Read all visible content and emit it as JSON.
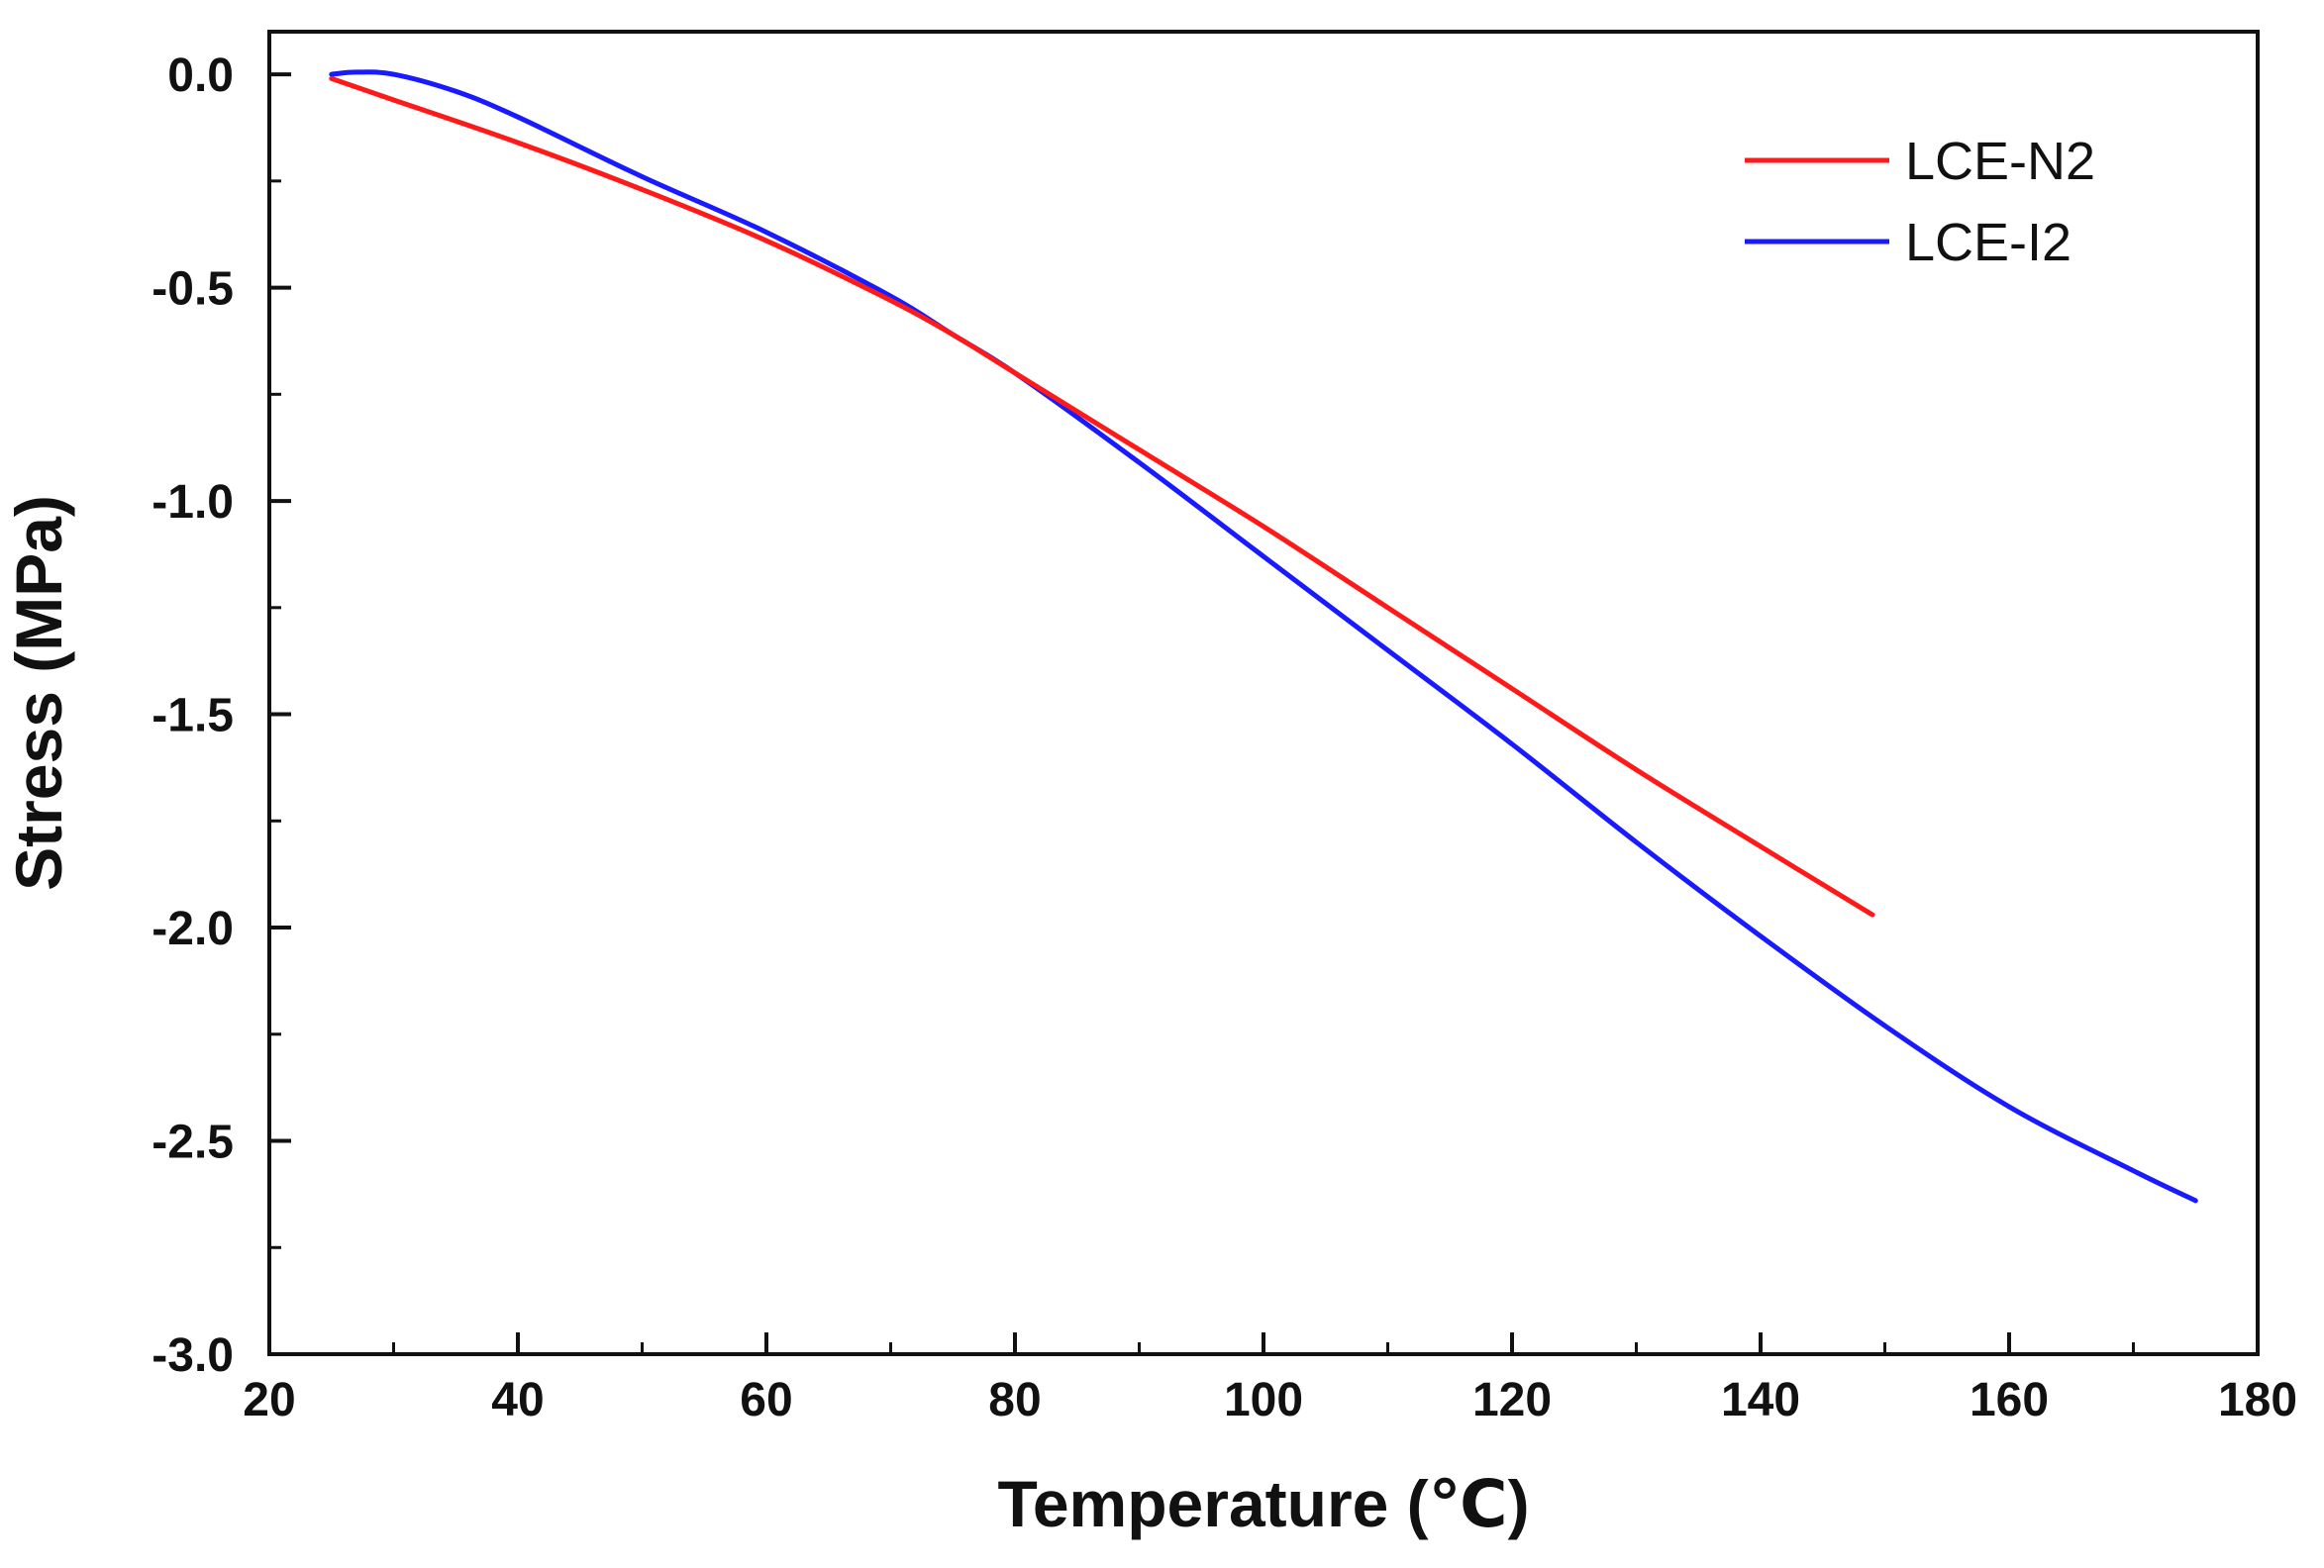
{
  "chart_data": {
    "type": "line",
    "title": "",
    "xlabel": "Temperature (℃)",
    "ylabel": "Stress (MPa)",
    "xlim": [
      20,
      180
    ],
    "ylim": [
      -3.0,
      0.1
    ],
    "xticks": [
      20,
      40,
      60,
      80,
      100,
      120,
      140,
      160,
      180
    ],
    "xtick_labels": [
      "20",
      "40",
      "60",
      "80",
      "100",
      "120",
      "140",
      "160",
      "180"
    ],
    "yticks": [
      0.0,
      -0.5,
      -1.0,
      -1.5,
      -2.0,
      -2.5,
      -3.0
    ],
    "ytick_labels": [
      "0.0",
      "-0.5",
      "-1.0",
      "-1.5",
      "-2.0",
      "-2.5",
      "-3.0"
    ],
    "grid": false,
    "legend_position": "top-right",
    "series": [
      {
        "name": "LCE-N2",
        "color": "#ff1a1a",
        "x": [
          25,
          30,
          40,
          50,
          60,
          70,
          75,
          80,
          90,
          100,
          110,
          120,
          130,
          140,
          149
        ],
        "y": [
          -0.01,
          -0.06,
          -0.16,
          -0.27,
          -0.39,
          -0.53,
          -0.61,
          -0.7,
          -0.88,
          -1.06,
          -1.25,
          -1.44,
          -1.63,
          -1.81,
          -1.97
        ]
      },
      {
        "name": "LCE-I2",
        "color": "#1a1aff",
        "x": [
          25,
          27,
          30,
          35,
          40,
          50,
          60,
          70,
          75,
          80,
          90,
          100,
          110,
          120,
          130,
          140,
          150,
          160,
          170,
          175
        ],
        "y": [
          0.0,
          0.005,
          0.0,
          -0.04,
          -0.1,
          -0.24,
          -0.37,
          -0.52,
          -0.61,
          -0.7,
          -0.91,
          -1.13,
          -1.35,
          -1.57,
          -1.8,
          -2.02,
          -2.23,
          -2.42,
          -2.57,
          -2.64
        ]
      }
    ]
  }
}
